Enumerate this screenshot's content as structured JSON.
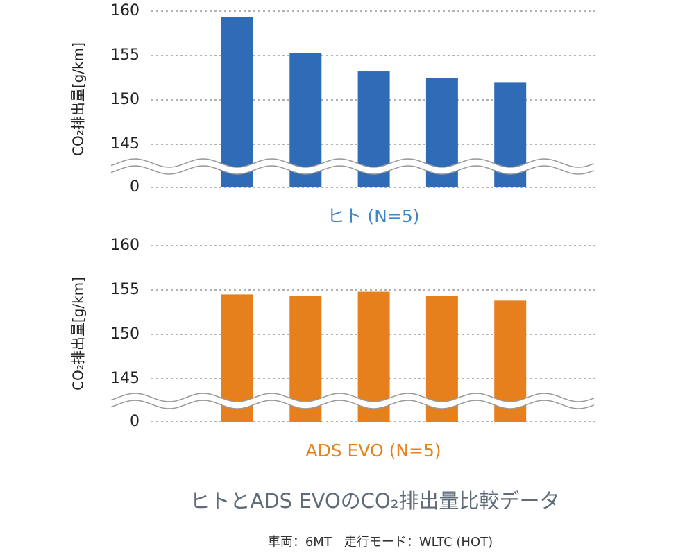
{
  "title": "ヒトとADS EVOのCO₂排出量比較データ",
  "note": "車両：6MT　走行モード：WLTC (HOT)",
  "chart_data": [
    {
      "type": "bar",
      "xlabel": "ヒト (N=5)",
      "xlabel_color": "#3f86c8",
      "ylabel": "CO₂排出量[g/km]",
      "values": [
        159.3,
        155.3,
        153.2,
        152.5,
        152.0
      ],
      "color": "#2f6cb5",
      "ylim": [
        0,
        160
      ],
      "yticks": [
        0,
        145,
        150,
        155,
        160
      ],
      "axis_break": [
        0,
        145
      ],
      "grid": true
    },
    {
      "type": "bar",
      "xlabel": "ADS EVO (N=5)",
      "xlabel_color": "#e6821e",
      "ylabel": "CO₂排出量[g/km]",
      "values": [
        154.5,
        154.3,
        154.8,
        154.3,
        153.8
      ],
      "color": "#e6801d",
      "ylim": [
        0,
        160
      ],
      "yticks": [
        0,
        145,
        150,
        155,
        160
      ],
      "axis_break": [
        0,
        145
      ],
      "grid": true
    }
  ]
}
